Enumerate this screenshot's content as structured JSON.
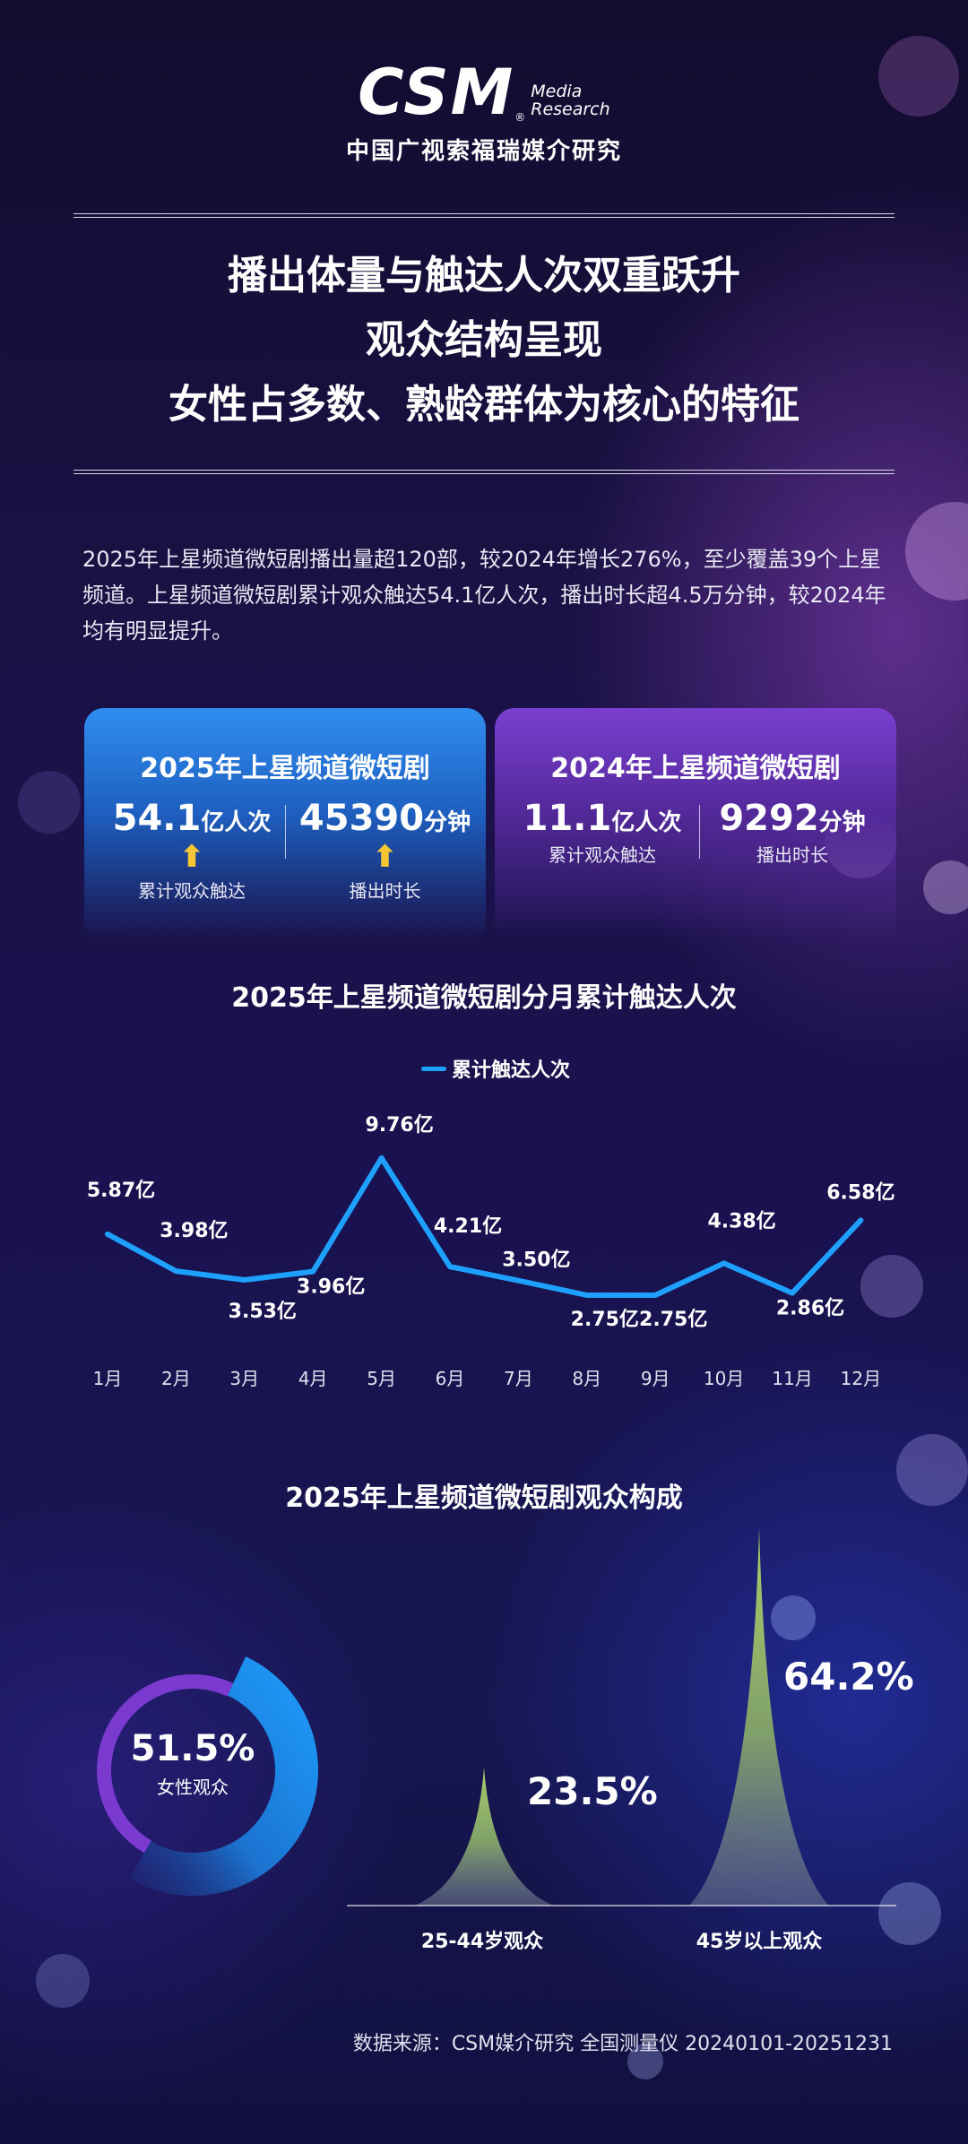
{
  "header": {
    "logo_main": "CSM",
    "logo_side_line1": "Media",
    "logo_side_line2": "Research",
    "logo_reg": "®",
    "logo_cn": "中国广视索福瑞媒介研究"
  },
  "headline": {
    "line1": "播出体量与触达人次双重跃升",
    "line2": "观众结构呈现",
    "line3": "女性占多数、熟龄群体为核心的特征"
  },
  "intro": {
    "text": "2025年上星频道微短剧播出量超120部，较2024年增长276%，至少覆盖39个上星频道。上星频道微短剧累计观众触达54.1亿人次，播出时长超4.5万分钟，较2024年均有明显提升。"
  },
  "cards": [
    {
      "title": "2025年上星频道微短剧",
      "stats": [
        {
          "num": "54.1",
          "unit": "亿人次",
          "arrow": "⬆",
          "label": "累计观众触达"
        },
        {
          "num": "45390",
          "unit": "分钟",
          "arrow": "⬆",
          "label": "播出时长"
        }
      ]
    },
    {
      "title": "2024年上星频道微短剧",
      "stats": [
        {
          "num": "11.1",
          "unit": "亿人次",
          "arrow": "",
          "label": "累计观众触达"
        },
        {
          "num": "9292",
          "unit": "分钟",
          "arrow": "",
          "label": "播出时长"
        }
      ]
    }
  ],
  "chart_data": [
    {
      "type": "line",
      "title": "2025年上星频道微短剧分月累计触达人次",
      "categories": [
        "1月",
        "2月",
        "3月",
        "4月",
        "5月",
        "6月",
        "7月",
        "8月",
        "9月",
        "10月",
        "11月",
        "12月"
      ],
      "series": [
        {
          "name": "累计触达人次",
          "values": [
            5.87,
            3.98,
            3.53,
            3.96,
            9.76,
            4.21,
            3.5,
            2.75,
            2.75,
            4.38,
            2.86,
            6.58
          ],
          "labels": [
            "5.87亿",
            "3.98亿",
            "3.53亿",
            "3.96亿",
            "9.76亿",
            "4.21亿",
            "3.50亿",
            "2.75亿",
            "2.75亿",
            "4.38亿",
            "2.86亿",
            "6.58亿"
          ],
          "color": "#1ea0ff"
        }
      ],
      "grid": false,
      "legend_position": "top-center"
    },
    {
      "type": "pie",
      "title": "2025年上星频道微短剧观众构成",
      "segments": [
        {
          "label": "女性观众",
          "value": 51.5,
          "display": "51.5%",
          "color": "#1ea0ff"
        },
        {
          "label": "",
          "value": 48.5,
          "display": "",
          "color": "#7a3ad0"
        }
      ]
    },
    {
      "type": "bar",
      "categories": [
        "25-44岁观众",
        "45岁以上观众"
      ],
      "values": [
        23.5,
        64.2
      ],
      "labels": [
        "23.5%",
        "64.2%"
      ],
      "color": "#9bbf6a"
    }
  ],
  "source": "数据来源：CSM媒介研究 全国测量仪 20240101-20251231"
}
